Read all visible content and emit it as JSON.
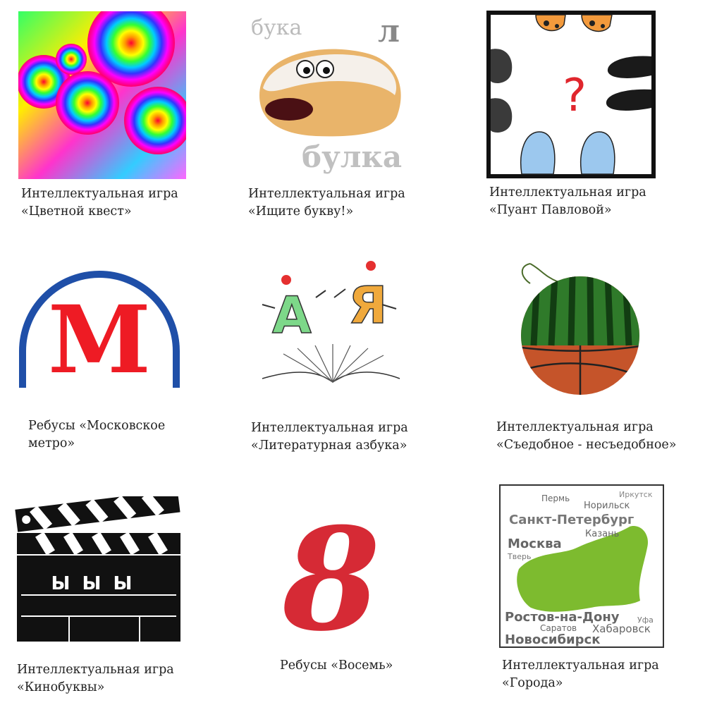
{
  "games": [
    {
      "line1": "Интеллектуальная игра",
      "line2": "«Цветной квест»",
      "icon": "concentric-rainbow-circles"
    },
    {
      "line1": "Интеллектуальная игра",
      "line2": "«Ищите букву!»",
      "icon": "pastry-with-eyes",
      "art": {
        "word_top": "бука",
        "letter": "л",
        "word_bottom": "булка"
      }
    },
    {
      "line1": "Интеллектуальная игра",
      "line2": "«Пуант Павловой»",
      "icon": "shoes-question-mark",
      "art": {
        "mark": "?"
      }
    },
    {
      "line1": "Ребусы «Московское",
      "line2": "метро»",
      "icon": "metro-logo",
      "art": {
        "letter": "М"
      }
    },
    {
      "line1": "Интеллектуальная игра",
      "line2": "«Литературная азбука»",
      "icon": "letters-a-ya-book",
      "art": {
        "left": "А",
        "right": "Я"
      }
    },
    {
      "line1": "Интеллектуальная игра",
      "line2": "«Съедобное - несъедобное»",
      "icon": "watermelon-basketball"
    },
    {
      "line1": "Интеллектуальная игра",
      "line2": "«Кинобуквы»",
      "icon": "clapperboard",
      "art": {
        "letters": "Ы Ы Ы"
      }
    },
    {
      "line1": "Ребусы «Восемь»",
      "line2": "",
      "icon": "number-eight",
      "art": {
        "digit": "8"
      }
    },
    {
      "line1": "Интеллектуальная игра",
      "line2": "«Города»",
      "icon": "russia-map-cities",
      "art": {
        "cities": [
          "Пермь",
          "Иркутск",
          "Норильск",
          "Санкт-Петербург",
          "Казань",
          "Москва",
          "Тверь",
          "Ростов-на-Дону",
          "Уфа",
          "Саратов",
          "Хабаровск",
          "Новосибирск"
        ]
      }
    }
  ],
  "colors": {
    "metro_red": "#ee1b24",
    "metro_blue": "#1f4fa8",
    "eight_red": "#d62a35",
    "map_green": "#7dbb2f"
  }
}
